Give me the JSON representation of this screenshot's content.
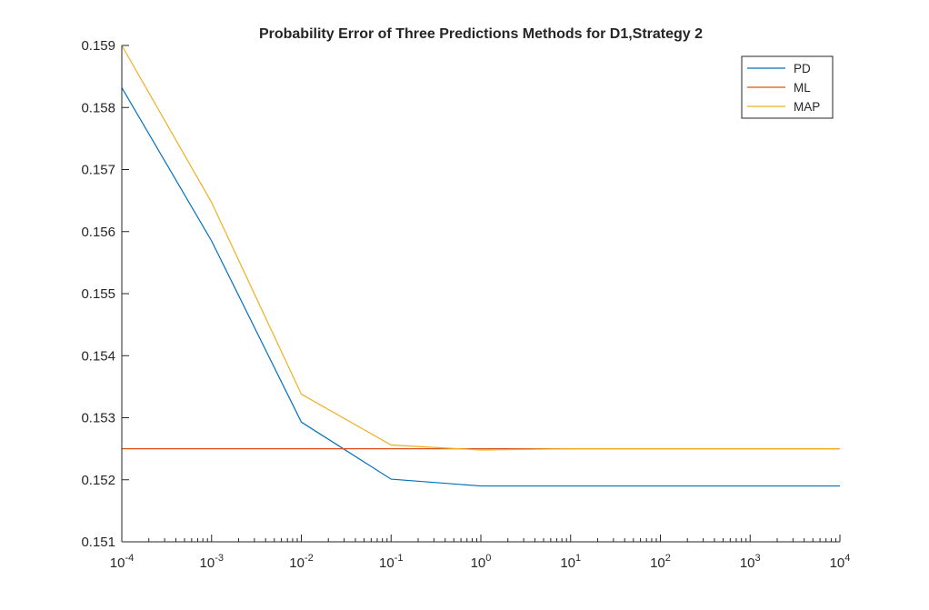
{
  "chart_data": {
    "type": "line",
    "title": "Probability Error of Three Predictions Methods for D1,Strategy 2",
    "xlabel": "",
    "ylabel": "",
    "xscale": "log",
    "xlim": [
      0.0001,
      10000
    ],
    "ylim": [
      0.151,
      0.159
    ],
    "x": [
      0.0001,
      0.001,
      0.01,
      0.1,
      1,
      10,
      100,
      1000,
      10000
    ],
    "xtick_labels": [
      {
        "base": "10",
        "exp": "-4"
      },
      {
        "base": "10",
        "exp": "-3"
      },
      {
        "base": "10",
        "exp": "-2"
      },
      {
        "base": "10",
        "exp": "-1"
      },
      {
        "base": "10",
        "exp": "0"
      },
      {
        "base": "10",
        "exp": "1"
      },
      {
        "base": "10",
        "exp": "2"
      },
      {
        "base": "10",
        "exp": "3"
      },
      {
        "base": "10",
        "exp": "4"
      }
    ],
    "yticks": [
      0.151,
      0.152,
      0.153,
      0.154,
      0.155,
      0.156,
      0.157,
      0.158,
      0.159
    ],
    "ytick_labels": [
      "0.151",
      "0.152",
      "0.153",
      "0.154",
      "0.155",
      "0.156",
      "0.157",
      "0.158",
      "0.159"
    ],
    "grid": false,
    "legend_position": "top-right",
    "series": [
      {
        "name": "PD",
        "color": "#0072BD",
        "values": [
          0.15832,
          0.15585,
          0.15293,
          0.15201,
          0.1519,
          0.1519,
          0.1519,
          0.1519,
          0.1519
        ]
      },
      {
        "name": "ML",
        "color": "#D95319",
        "values": [
          0.1525,
          0.1525,
          0.1525,
          0.1525,
          0.1525,
          0.1525,
          0.1525,
          0.1525,
          0.1525
        ]
      },
      {
        "name": "MAP",
        "color": "#EDB120",
        "values": [
          0.159,
          0.15647,
          0.15338,
          0.15256,
          0.15248,
          0.1525,
          0.1525,
          0.1525,
          0.1525
        ]
      }
    ]
  }
}
